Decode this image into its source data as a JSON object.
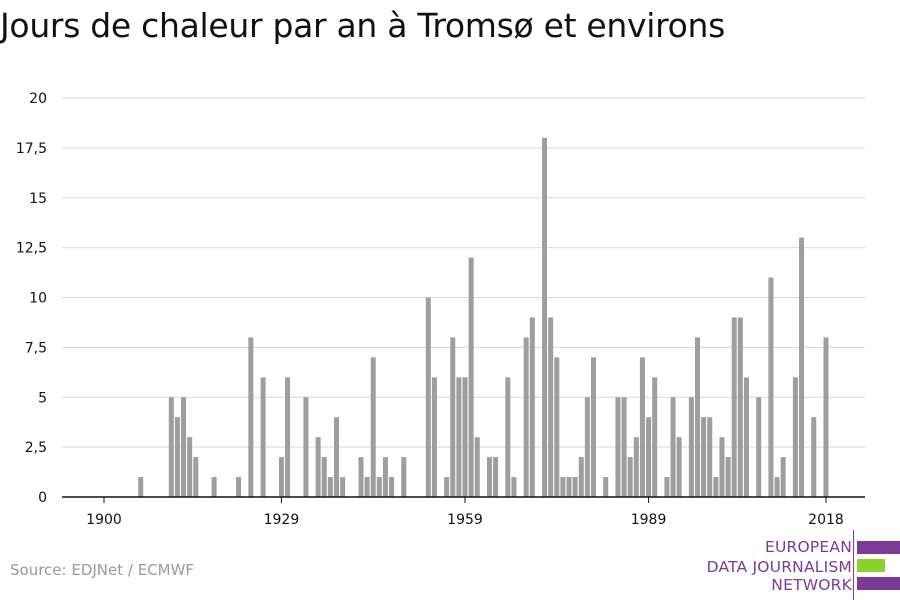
{
  "title": "Jours de chaleur par an à Tromsø et environs",
  "source": "Source: EDJNet / ECMWF",
  "logo": {
    "line1": "EUROPEAN",
    "line2": "DATA JOURNALISM",
    "line3": "NETWORK",
    "colors": {
      "purple": "#7a3b97",
      "green": "#8fd12b"
    }
  },
  "colors": {
    "bar": "#9e9e9e",
    "grid": "#d9d9d9",
    "axis": "#111111"
  },
  "chart_data": {
    "type": "bar",
    "title": "Jours de chaleur par an à Tromsø et environs",
    "xlabel": "",
    "ylabel": "",
    "ylim": [
      0,
      20
    ],
    "yticks": [
      "0",
      "2,5",
      "5",
      "7,5",
      "10",
      "12,5",
      "15",
      "17,5",
      "20"
    ],
    "xticks": [
      "1900",
      "1929",
      "1959",
      "1989",
      "2018"
    ],
    "grid": true,
    "x": [
      1900,
      1901,
      1902,
      1903,
      1904,
      1905,
      1906,
      1907,
      1908,
      1909,
      1910,
      1911,
      1912,
      1913,
      1914,
      1915,
      1916,
      1917,
      1918,
      1919,
      1920,
      1921,
      1922,
      1923,
      1924,
      1925,
      1926,
      1927,
      1928,
      1929,
      1930,
      1931,
      1932,
      1933,
      1934,
      1935,
      1936,
      1937,
      1938,
      1939,
      1940,
      1941,
      1942,
      1943,
      1944,
      1945,
      1946,
      1947,
      1948,
      1949,
      1950,
      1951,
      1952,
      1953,
      1954,
      1955,
      1956,
      1957,
      1958,
      1959,
      1960,
      1961,
      1962,
      1963,
      1964,
      1965,
      1966,
      1967,
      1968,
      1969,
      1970,
      1971,
      1972,
      1973,
      1974,
      1975,
      1976,
      1977,
      1978,
      1979,
      1980,
      1981,
      1982,
      1983,
      1984,
      1985,
      1986,
      1987,
      1988,
      1989,
      1990,
      1991,
      1992,
      1993,
      1994,
      1995,
      1996,
      1997,
      1998,
      1999,
      2000,
      2001,
      2002,
      2003,
      2004,
      2005,
      2006,
      2007,
      2008,
      2009,
      2010,
      2011,
      2012,
      2013,
      2014,
      2015,
      2016,
      2017,
      2018
    ],
    "values": [
      0,
      0,
      0,
      0,
      0,
      0,
      1,
      0,
      0,
      0,
      0,
      5,
      4,
      5,
      3,
      2,
      0,
      0,
      1,
      0,
      0,
      0,
      1,
      0,
      8,
      0,
      6,
      0,
      0,
      2,
      6,
      0,
      0,
      5,
      0,
      3,
      2,
      1,
      4,
      1,
      0,
      0,
      2,
      1,
      7,
      1,
      2,
      1,
      0,
      2,
      0,
      0,
      0,
      10,
      6,
      0,
      1,
      8,
      6,
      6,
      12,
      3,
      0,
      2,
      2,
      0,
      6,
      1,
      0,
      8,
      9,
      0,
      18,
      9,
      7,
      1,
      1,
      1,
      2,
      5,
      7,
      0,
      1,
      0,
      5,
      5,
      2,
      3,
      7,
      4,
      6,
      0,
      1,
      5,
      3,
      0,
      5,
      8,
      4,
      4,
      1,
      3,
      2,
      9,
      9,
      6,
      0,
      5,
      0,
      11,
      1,
      2,
      0,
      6,
      13,
      0,
      4,
      0,
      8
    ]
  }
}
